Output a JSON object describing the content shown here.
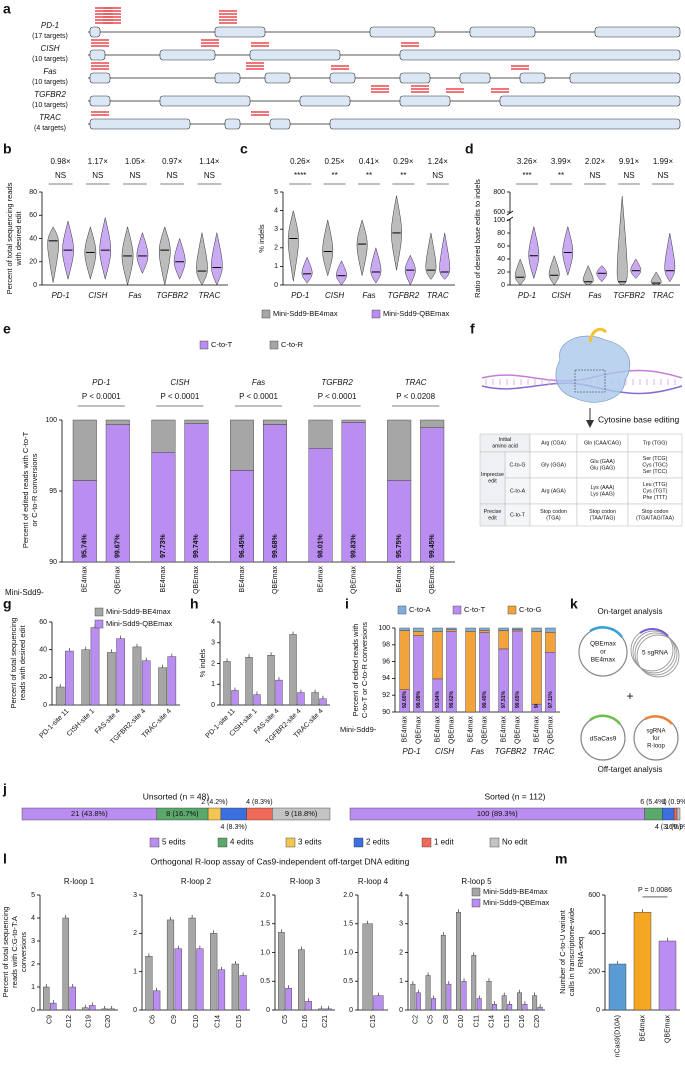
{
  "a": {
    "label": "a",
    "genes": [
      {
        "name": "PD-1",
        "targets": "(17 targets)"
      },
      {
        "name": "CISH",
        "targets": "(10 targets)"
      },
      {
        "name": "Fas",
        "targets": "(10 targets)"
      },
      {
        "name": "TGFBR2",
        "targets": "(10 targets)"
      },
      {
        "name": "TRAC",
        "targets": "(4 targets)"
      }
    ]
  },
  "b": {
    "label": "b",
    "ylabel": [
      "Percent of total sequencing reads",
      "with desired edit"
    ],
    "categories": [
      "PD-1",
      "CISH",
      "Fas",
      "TGFBR2",
      "TRAC"
    ],
    "fold": [
      "0.98×",
      "1.17×",
      "1.05×",
      "0.97×",
      "1.14×"
    ],
    "sig": [
      "NS",
      "NS",
      "NS",
      "NS",
      "NS"
    ],
    "ylim": [
      0,
      80
    ],
    "yticks": [
      0,
      20,
      40,
      60,
      80
    ],
    "series": [
      {
        "color": "#a6a6a6",
        "values": [
          38,
          28,
          25,
          30,
          12
        ],
        "min": [
          2,
          5,
          0,
          0,
          0
        ],
        "max": [
          50,
          50,
          50,
          50,
          45
        ]
      },
      {
        "color": "#b98ef0",
        "values": [
          30,
          30,
          25,
          20,
          15
        ],
        "min": [
          5,
          5,
          10,
          5,
          0
        ],
        "max": [
          55,
          58,
          45,
          40,
          45
        ]
      }
    ]
  },
  "c": {
    "label": "c",
    "ylabel": [
      "% indels"
    ],
    "categories": [
      "PD-1",
      "CISH",
      "Fas",
      "TGFBR2",
      "TRAC"
    ],
    "fold": [
      "0.26×",
      "0.25×",
      "0.41×",
      "0.29×",
      "1.24×"
    ],
    "sig": [
      "****",
      "**",
      "**",
      "**",
      "NS"
    ],
    "ylim": [
      0,
      5
    ],
    "yticks": [
      0,
      1,
      2,
      3,
      4,
      5
    ],
    "series": [
      {
        "name": "Mini-Sdd9-BE4max",
        "color": "#a6a6a6",
        "values": [
          2.5,
          1.8,
          2.2,
          2.8,
          0.8
        ],
        "min": [
          0.2,
          0.5,
          0.5,
          0.8,
          0.3
        ],
        "max": [
          4.0,
          3.5,
          3.5,
          4.8,
          2.8
        ]
      },
      {
        "name": "Mini-Sdd9-QBEmax",
        "color": "#b98ef0",
        "values": [
          0.6,
          0.5,
          0.7,
          0.8,
          0.7
        ],
        "min": [
          0.1,
          0,
          0.1,
          0,
          0.3
        ],
        "max": [
          1.5,
          1.3,
          2.0,
          1.6,
          2.8
        ]
      }
    ]
  },
  "d": {
    "label": "d",
    "ylabel": [
      "Ratio of desired base edits to indels"
    ],
    "categories": [
      "PD-1",
      "CISH",
      "Fas",
      "TGFBR2",
      "TRAC"
    ],
    "fold": [
      "3.26×",
      "3.99×",
      "2.02×",
      "9.91×",
      "1.99×"
    ],
    "sig": [
      "***",
      "**",
      "NS",
      "NS",
      "NS"
    ],
    "ylim": [
      0,
      100
    ],
    "yticks": [
      0,
      20,
      40,
      60,
      80,
      100
    ],
    "ylim_upper": [
      600,
      800
    ],
    "yticks_upper": [
      600,
      800
    ],
    "series": [
      {
        "color": "#a6a6a6",
        "values": [
          12,
          15,
          5,
          5,
          3
        ],
        "min": [
          0,
          0,
          0,
          0,
          0
        ],
        "max": [
          40,
          45,
          30,
          760,
          20
        ]
      },
      {
        "color": "#b98ef0",
        "values": [
          45,
          50,
          18,
          22,
          22
        ],
        "min": [
          10,
          15,
          5,
          10,
          5
        ],
        "max": [
          90,
          90,
          30,
          40,
          80
        ]
      }
    ]
  },
  "e": {
    "label": "e",
    "ylabel": [
      "Percent of edited reads with C-to-T",
      "or C-to-R conversions"
    ],
    "prefix": "Mini-Sdd9-",
    "groups": [
      "PD-1",
      "CISH",
      "Fas",
      "TGFBR2",
      "TRAC"
    ],
    "pvalues": [
      "P < 0.0001",
      "P < 0.0001",
      "P < 0.0001",
      "P < 0.0001",
      "P < 0.0208"
    ],
    "categories": [
      "BE4max",
      "QBEmax",
      "BE4max",
      "QBEmax",
      "BE4max",
      "QBEmax",
      "BE4max",
      "QBEmax",
      "BE4max",
      "QBEmax"
    ],
    "ylim": [
      90,
      100
    ],
    "yticks": [
      90,
      95,
      100
    ],
    "series": [
      {
        "name": "C-to-T",
        "color": "#b98ef0",
        "values": [
          95.74,
          99.67,
          97.73,
          99.74,
          96.45,
          99.68,
          98.01,
          99.83,
          95.75,
          99.45
        ],
        "value_labels": [
          "95.74%",
          "99.67%",
          "97.73%",
          "99.74%",
          "96.45%",
          "99.68%",
          "98.01%",
          "99.83%",
          "95.75%",
          "99.45%"
        ]
      },
      {
        "name": "C-to-R",
        "color": "#a6a6a6",
        "values": [
          4.26,
          0.33,
          2.27,
          0.26,
          3.55,
          0.32,
          1.99,
          0.17,
          4.25,
          0.55
        ]
      }
    ]
  },
  "f": {
    "label": "f",
    "caption": "Cytosine base editing",
    "header": [
      [
        "Initial",
        "amino acid"
      ],
      [
        "Arg (CGA)"
      ],
      [
        "Gln (CAA/CAG)"
      ],
      [
        "Trp (TGG)"
      ]
    ],
    "groups": [
      {
        "name": [
          "Imprecise",
          "edit"
        ],
        "rows": [
          {
            "type": [
              "C-to-G"
            ],
            "cells": [
              [
                "Gly (GGA)"
              ],
              [
                "Glu (GAA)",
                "Glu (GAG)"
              ],
              [
                "Ser (TCG)",
                "Cys (TGC)",
                "Ser (TCC)"
              ]
            ]
          },
          {
            "type": [
              "C-to-A"
            ],
            "cells": [
              [
                "Arg (AGA)"
              ],
              [
                "Lys (AAA)",
                "Lys (AAG)"
              ],
              [
                "Leu (TTG)",
                "Cys (TGT)",
                "Phe (TTT)"
              ]
            ]
          }
        ]
      },
      {
        "name": [
          "Precise",
          "edit"
        ],
        "rows": [
          {
            "type": [
              "C-to-T"
            ],
            "cells": [
              [
                "Stop codon",
                "(TGA)"
              ],
              [
                "Stop codon",
                "(TAA/TAG)"
              ],
              [
                "Stop codon",
                "(TGA/TAG/TAA)"
              ]
            ]
          }
        ]
      }
    ]
  },
  "g": {
    "label": "g",
    "ylabel": [
      "Percent of total sequencing",
      "reads with desired edit"
    ],
    "categories": [
      "PD-1-site 11",
      "CISH-site 1",
      "FAS-site 4",
      "TGFBR2-site 4",
      "TRAC-site 4"
    ],
    "ylim": [
      0,
      60
    ],
    "yticks": [
      0,
      20,
      40,
      60
    ],
    "series": [
      {
        "name": "Mini-Sdd9-BE4max",
        "color": "#a6a6a6",
        "values": [
          13,
          40,
          38,
          42,
          27
        ]
      },
      {
        "name": "Mini-Sdd9-QBEmax",
        "color": "#b98ef0",
        "values": [
          39,
          56,
          48,
          32,
          35
        ]
      }
    ]
  },
  "h": {
    "label": "h",
    "ylabel": [
      "% indels"
    ],
    "categories": [
      "PD-1-site 11",
      "CISH-site 1",
      "FAS-site 4",
      "TGFBR2-site 4",
      "TRAC-site 4"
    ],
    "ylim": [
      0,
      4
    ],
    "yticks": [
      0,
      1,
      2,
      3,
      4
    ],
    "series": [
      {
        "color": "#a6a6a6",
        "values": [
          2.1,
          2.3,
          2.4,
          3.4,
          0.6
        ]
      },
      {
        "color": "#b98ef0",
        "values": [
          0.7,
          0.5,
          1.2,
          0.6,
          0.3
        ]
      }
    ]
  },
  "i": {
    "label": "i",
    "ylabel": [
      "Percent of edited reads with",
      "C-to-T or C-to-R conversions"
    ],
    "prefix": "Mini-Sdd9-",
    "groups": [
      "PD-1",
      "CISH",
      "Fas",
      "TGFBR2",
      "TRAC"
    ],
    "categories": [
      "BE4max",
      "QBEmax",
      "BE4max",
      "QBEmax",
      "BE4max",
      "QBEmax",
      "BE4max",
      "QBEmax",
      "BE4max",
      "QBEmax"
    ],
    "ylim": [
      90,
      100
    ],
    "yticks": [
      90,
      92,
      94,
      96,
      98,
      100
    ],
    "series": [
      {
        "name": "C-to-A",
        "color": "#7fb0dc",
        "values": [
          0.3,
          0.4,
          0.4,
          0.2,
          0.4,
          0.3,
          0.3,
          0.2,
          0.4,
          0.5
        ]
      },
      {
        "name": "C-to-T",
        "color": "#b98ef0",
        "values": [
          92.65,
          99.09,
          93.94,
          99.62,
          88.9,
          99.45,
          97.51,
          99.65,
          90.94,
          97.11
        ],
        "value_labels": [
          "92.65%",
          "99.09%",
          "93.94%",
          "99.62%",
          "88.90%",
          "99.45%",
          "97.51%",
          "99.65%",
          "90.94%",
          "97.11%"
        ]
      },
      {
        "name": "C-to-G",
        "color": "#f3a33c",
        "values": [
          7.05,
          0.51,
          5.66,
          0.18,
          10.7,
          0.25,
          2.19,
          0.15,
          8.66,
          2.39
        ]
      }
    ]
  },
  "k": {
    "label": "k",
    "on_target": "On-target analysis",
    "plasmid": [
      "QBEmax",
      "or",
      "BE4max"
    ],
    "sgrna": "5 sgRNA",
    "plus": "+",
    "dsacas9": "dSaCas9",
    "rloop": [
      "sgRNA",
      "for",
      "R-loop"
    ],
    "off_target": "Off-target analysis"
  },
  "j": {
    "label": "j",
    "legend": [
      {
        "name": "5 edits",
        "color": "#b98ef0"
      },
      {
        "name": "4 edits",
        "color": "#5aa86a"
      },
      {
        "name": "3 edits",
        "color": "#f3c552"
      },
      {
        "name": "2 edits",
        "color": "#3b6fe0"
      },
      {
        "name": "1 edit",
        "color": "#f06a5a"
      },
      {
        "name": "No edit",
        "color": "#c4c4c4"
      }
    ],
    "bars": [
      {
        "title": "Unsorted (n = 48)",
        "categories": [
          "5 edits",
          "4 edits",
          "3 edits",
          "2 edits",
          "1 edit",
          "No edit"
        ],
        "values": [
          21,
          8,
          2,
          4,
          4,
          9
        ],
        "value_labels": [
          "21 (43.8%)",
          "8 (16.7%)",
          "2 (4.2%)",
          "4 (8.3%)",
          "4 (8.3%)",
          "9 (18.8%)"
        ]
      },
      {
        "title": "Sorted (n = 112)",
        "categories": [
          "5 edits",
          "4 edits",
          "2 edits",
          "1 edit",
          "No edit"
        ],
        "values": [
          100,
          6,
          4,
          1,
          1
        ],
        "value_labels": [
          "100 (89.3%)",
          "6 (5.4%)",
          "4 (3.6%)",
          "1 (0.9%)",
          "1 (0.9%)"
        ]
      }
    ]
  },
  "l": {
    "label": "l",
    "title": "Orthogonal R-loop assay of Cas9-independent off-target DNA editing",
    "ylabel": [
      "Percent of total sequencing",
      "reads with C:G-to-T:A",
      "conversions"
    ],
    "legend": [
      {
        "name": "Mini-Sdd9-BE4max",
        "color": "#a6a6a6"
      },
      {
        "name": "Mini-Sdd9-QBEmax",
        "color": "#b98ef0"
      }
    ],
    "plots": [
      {
        "title": "R-loop 1",
        "categories": [
          "C9",
          "C12",
          "C19",
          "C20"
        ],
        "ylim": [
          0,
          5
        ],
        "yticks": [
          0,
          1,
          2,
          3,
          4,
          5
        ],
        "series": [
          {
            "values": [
              1.0,
              4.0,
              0.1,
              0.05
            ]
          },
          {
            "values": [
              0.3,
              1.0,
              0.2,
              0.05
            ]
          }
        ]
      },
      {
        "title": "R-loop 2",
        "categories": [
          "C6",
          "C9",
          "C10",
          "C14",
          "C15"
        ],
        "ylim": [
          0,
          3
        ],
        "yticks": [
          0,
          1,
          2,
          3
        ],
        "series": [
          {
            "values": [
              1.4,
              2.35,
              2.4,
              2.0,
              1.2
            ]
          },
          {
            "values": [
              0.5,
              1.6,
              1.6,
              1.05,
              0.9
            ]
          }
        ]
      },
      {
        "title": "R-loop 3",
        "categories": [
          "C5",
          "C16",
          "C21"
        ],
        "ylim": [
          0,
          2
        ],
        "yticks": [
          0,
          0.5,
          {
            "value": 1,
            "label": "1.0"
          },
          1.5,
          {
            "value": 2,
            "label": "2.0"
          }
        ],
        "series": [
          {
            "values": [
              1.35,
              1.05,
              0.02
            ]
          },
          {
            "values": [
              0.38,
              0.15,
              0.02
            ]
          }
        ]
      },
      {
        "title": "R-loop 4",
        "categories": [
          "C15"
        ],
        "ylim": [
          0,
          2
        ],
        "yticks": [
          0,
          0.5,
          {
            "value": 1,
            "label": "1.0"
          },
          1.5,
          {
            "value": 2,
            "label": "2.0"
          }
        ],
        "series": [
          {
            "values": [
              1.5
            ]
          },
          {
            "values": [
              0.25
            ]
          }
        ]
      },
      {
        "title": "R-loop 5",
        "categories": [
          "C2",
          "C5",
          "C8",
          "C10",
          "C11",
          "C14",
          "C15",
          "C16",
          "C20"
        ],
        "ylim": [
          0,
          4
        ],
        "yticks": [
          0,
          1,
          2,
          3,
          4
        ],
        "series": [
          {
            "values": [
              0.9,
              1.2,
              2.6,
              3.4,
              1.9,
              1.0,
              0.5,
              0.6,
              0.5
            ]
          },
          {
            "values": [
              0.6,
              0.4,
              0.9,
              1.0,
              0.4,
              0.2,
              0.2,
              0.2,
              0.1
            ]
          }
        ]
      }
    ]
  },
  "m": {
    "label": "m",
    "ylabel": [
      "Number of C-to-U variant",
      "calls in transcriptome-wide",
      "RNA-seq"
    ],
    "categories": [
      "nCas9(D10A)",
      "BE4max",
      "QBEmax"
    ],
    "ylim": [
      0,
      600
    ],
    "yticks": [
      0,
      200,
      400,
      600
    ],
    "annotation": "P = 0.0086",
    "series": [
      {
        "colors": [
          "#5b9bd5",
          "#f5a623",
          "#b98ef0"
        ],
        "values": [
          240,
          510,
          360
        ]
      }
    ]
  }
}
